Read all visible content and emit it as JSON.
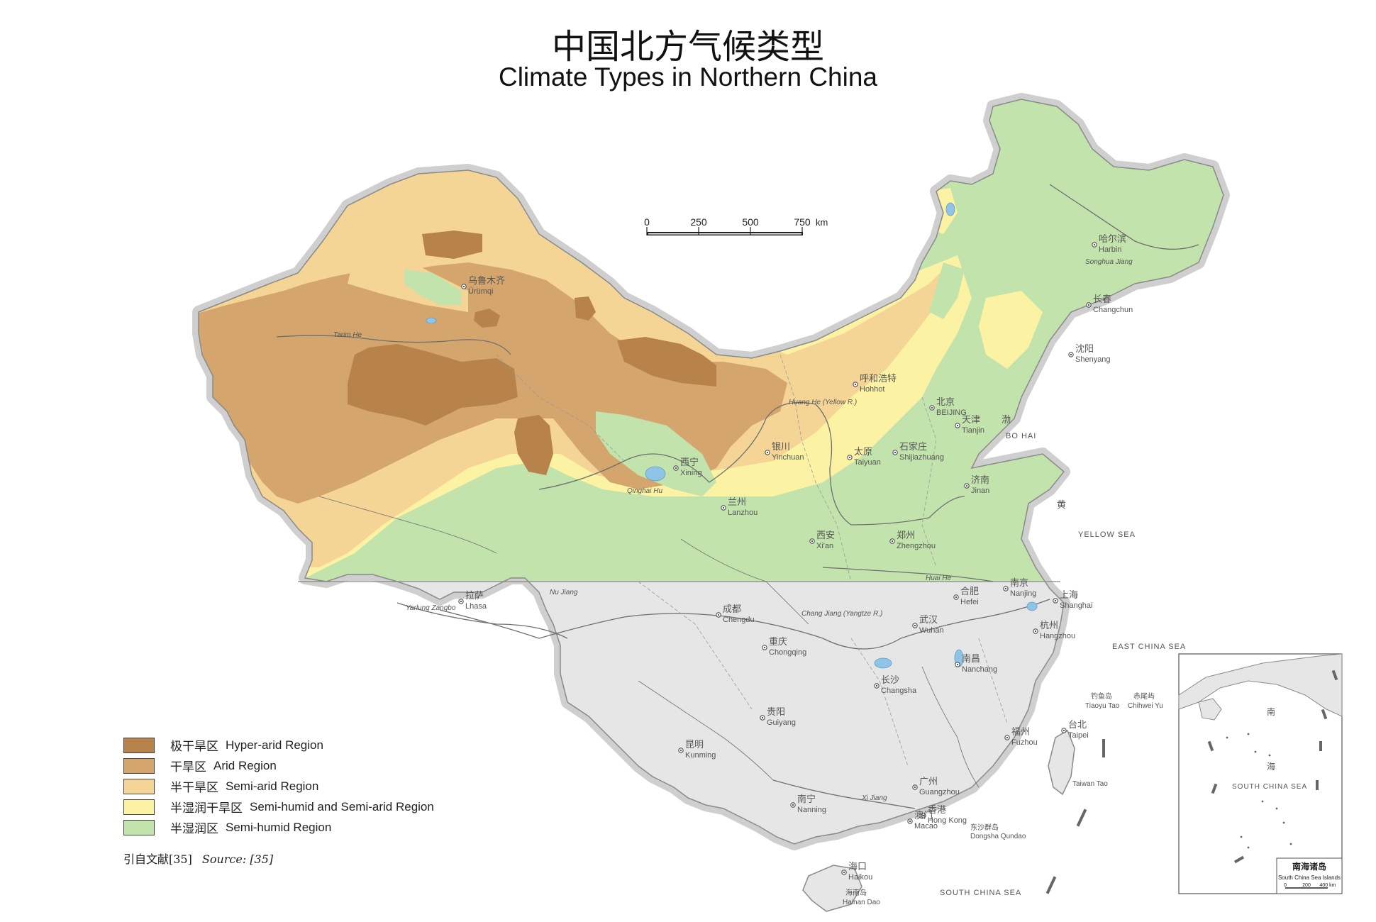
{
  "title": {
    "zh": "中国北方气候类型",
    "en": "Climate Types in Northern China"
  },
  "colors": {
    "hyper_arid": "#b8834a",
    "arid": "#d4a56c",
    "semi_arid": "#f5d595",
    "semi_humid_semi_arid": "#fbf3a3",
    "semi_humid": "#c3e3ad",
    "south_grey": "#e6e6e6",
    "border_halo": "#cfcfcf",
    "lake": "#8fc4e6",
    "river": "#6f6f6f"
  },
  "scale_bar": {
    "ticks": [
      "0",
      "250",
      "500",
      "750"
    ],
    "unit": "km"
  },
  "legend": [
    {
      "zh": "极干旱区",
      "en": "Hyper-arid Region",
      "color_key": "hyper_arid"
    },
    {
      "zh": "干旱区",
      "en": "Arid Region",
      "color_key": "arid"
    },
    {
      "zh": "半干旱区",
      "en": "Semi-arid Region",
      "color_key": "semi_arid"
    },
    {
      "zh": "半湿润干旱区",
      "en": "Semi-humid and Semi-arid Region",
      "color_key": "semi_humid_semi_arid"
    },
    {
      "zh": "半湿润区",
      "en": "Semi-humid Region",
      "color_key": "semi_humid"
    }
  ],
  "source": {
    "zh": "引自文献[35]",
    "en": "Source: [35]"
  },
  "cities": [
    {
      "id": "urumqi",
      "zh": "乌鲁木齐",
      "en": "Ürümqi"
    },
    {
      "id": "harbin",
      "zh": "哈尔滨",
      "en": "Harbin"
    },
    {
      "id": "changchun",
      "zh": "长春",
      "en": "Changchun"
    },
    {
      "id": "shenyang",
      "zh": "沈阳",
      "en": "Shenyang"
    },
    {
      "id": "hohhot",
      "zh": "呼和浩特",
      "en": "Hohhot"
    },
    {
      "id": "beijing",
      "zh": "北京",
      "en": "BEIJING"
    },
    {
      "id": "tianjin",
      "zh": "天津",
      "en": "Tianjin"
    },
    {
      "id": "shijiazhuang",
      "zh": "石家庄",
      "en": "Shijiazhuang"
    },
    {
      "id": "taiyuan",
      "zh": "太原",
      "en": "Taiyuan"
    },
    {
      "id": "jinan",
      "zh": "济南",
      "en": "Jinan"
    },
    {
      "id": "yinchuan",
      "zh": "银川",
      "en": "Yinchuan"
    },
    {
      "id": "xining",
      "zh": "西宁",
      "en": "Xining"
    },
    {
      "id": "lanzhou",
      "zh": "兰州",
      "en": "Lanzhou"
    },
    {
      "id": "zhengzhou",
      "zh": "郑州",
      "en": "Zhengzhou"
    },
    {
      "id": "xian",
      "zh": "西安",
      "en": "Xi'an"
    },
    {
      "id": "lhasa",
      "zh": "拉萨",
      "en": "Lhasa"
    },
    {
      "id": "chengdu",
      "zh": "成都",
      "en": "Chengdu"
    },
    {
      "id": "hefei",
      "zh": "合肥",
      "en": "Hefei"
    },
    {
      "id": "nanjing",
      "zh": "南京",
      "en": "Nanjing"
    },
    {
      "id": "shanghai",
      "zh": "上海",
      "en": "Shanghai"
    },
    {
      "id": "wuhan",
      "zh": "武汉",
      "en": "Wuhan"
    },
    {
      "id": "hangzhou",
      "zh": "杭州",
      "en": "Hangzhou"
    },
    {
      "id": "chongqing",
      "zh": "重庆",
      "en": "Chongqing"
    },
    {
      "id": "changsha",
      "zh": "长沙",
      "en": "Changsha"
    },
    {
      "id": "nanchang",
      "zh": "南昌",
      "en": "Nanchang"
    },
    {
      "id": "guiyang",
      "zh": "贵阳",
      "en": "Guiyang"
    },
    {
      "id": "fuzhou",
      "zh": "福州",
      "en": "Fuzhou"
    },
    {
      "id": "taipei",
      "zh": "台北",
      "en": "Taipei"
    },
    {
      "id": "kunming",
      "zh": "昆明",
      "en": "Kunming"
    },
    {
      "id": "guangzhou",
      "zh": "广州",
      "en": "Guangzhou"
    },
    {
      "id": "nanning",
      "zh": "南宁",
      "en": "Nanning"
    },
    {
      "id": "hongkong",
      "zh": "香港",
      "en": "Hong Kong"
    },
    {
      "id": "macao",
      "zh": "澳门",
      "en": "Macao"
    },
    {
      "id": "haikou",
      "zh": "海口",
      "en": "Haikou"
    }
  ],
  "water_labels": [
    {
      "id": "bohai",
      "text": "BO HAI"
    },
    {
      "id": "yellow-sea",
      "text": "YELLOW SEA"
    },
    {
      "id": "east-china-sea",
      "text": "EAST CHINA SEA"
    },
    {
      "id": "south-china-sea",
      "text": "SOUTH CHINA SEA"
    },
    {
      "id": "yellow-sea-zh",
      "text": "黄"
    },
    {
      "id": "bohai-zh",
      "text": "渤"
    }
  ],
  "river_labels": [
    {
      "id": "tarim",
      "text": "Tarim He"
    },
    {
      "id": "huang-he",
      "text": "Huang He (Yellow R.)"
    },
    {
      "id": "huai-he",
      "text": "Huai He"
    },
    {
      "id": "yarlung",
      "text": "Yarlung Zangbo"
    },
    {
      "id": "nu-jiang",
      "text": "Nu Jiang"
    },
    {
      "id": "chang-jiang",
      "text": "Chang Jiang (Yangtze R.)"
    },
    {
      "id": "xi-jiang",
      "text": "Xi Jiang"
    },
    {
      "id": "songhua",
      "text": "Songhua Jiang"
    },
    {
      "id": "qinghai-hu",
      "text": "Qinghai Hu"
    }
  ],
  "island_labels": [
    {
      "id": "diaoyu",
      "zh": "钓鱼岛",
      "en": "Tiaoyu Tao"
    },
    {
      "id": "chiwei",
      "zh": "赤尾屿",
      "en": "Chihwei Yu"
    },
    {
      "id": "taiwan",
      "zh": "",
      "en": "Taiwan Tao"
    },
    {
      "id": "dongsha",
      "zh": "东沙群岛",
      "en": "Dongsha Qundao"
    },
    {
      "id": "hainan",
      "zh": "海南岛",
      "en": "Hainan Dao"
    }
  ],
  "inset": {
    "title_zh": "南海诸岛",
    "title_en": "South China Sea Islands",
    "sea_zh_1": "南",
    "sea_zh_2": "海",
    "sea_en": "SOUTH CHINA SEA",
    "scale_ticks": [
      "0",
      "200",
      "400 km"
    ]
  }
}
